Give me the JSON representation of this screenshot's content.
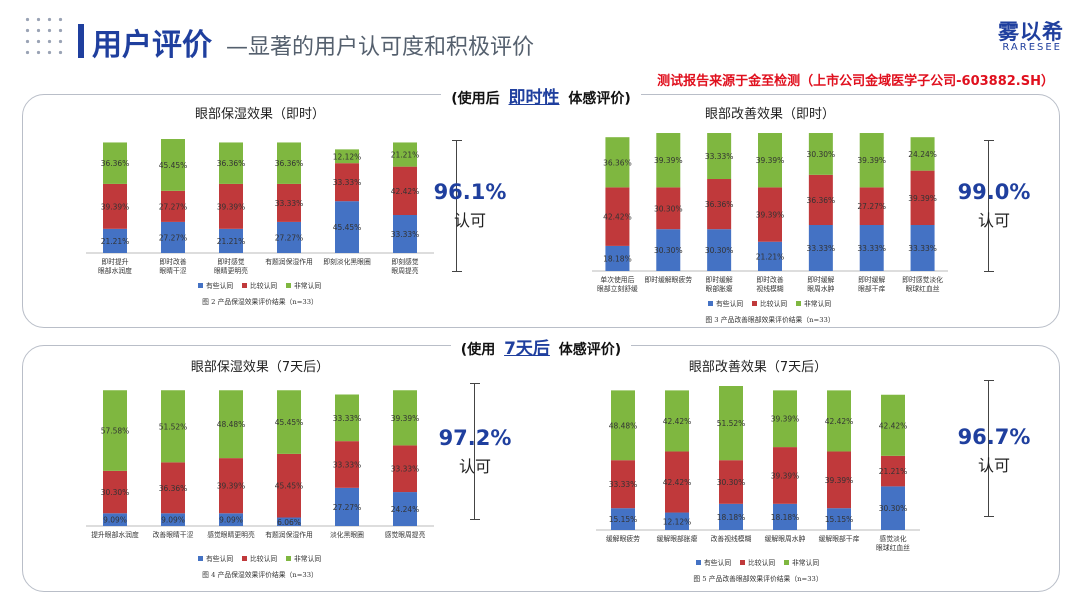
{
  "header": {
    "title_main": "用户评价",
    "title_sub": "—显著的用户认可度和积极评价",
    "brand_cn": "雾以希",
    "brand_en": "RARESEE",
    "report_note": "测试报告来源于金至检测（上市公司金域医学子公司-603882.SH）"
  },
  "sections": [
    {
      "prefix": "(使用后",
      "highlight": "即时性",
      "suffix": "体感评价)"
    },
    {
      "prefix": "(使用",
      "highlight": "7天后",
      "suffix": "体感评价)"
    }
  ],
  "legend": [
    "有些认同",
    "比较认同",
    "非常认同"
  ],
  "colors": {
    "some": "#4472c4",
    "fair": "#c0393b",
    "strong": "#7fb740",
    "accent": "#1f3f9e"
  },
  "approvals": [
    {
      "value": "96.1%",
      "label": "认可"
    },
    {
      "value": "99.0%",
      "label": "认可"
    },
    {
      "value": "97.2%",
      "label": "认可"
    },
    {
      "value": "96.7%",
      "label": "认可"
    }
  ],
  "chart_data": [
    {
      "type": "bar",
      "stacked": true,
      "title": "眼部保湿效果（即时）",
      "caption": "图 2 产品保湿效果评价结果（n=33）",
      "categories": [
        [
          "即时提升",
          "眼部水润度"
        ],
        [
          "即时改善",
          "眼睛干涩"
        ],
        [
          "即时感觉",
          "眼睛更明亮"
        ],
        [
          "有题润保湿作用"
        ],
        [
          "即刻淡化黑眼圈"
        ],
        [
          "即刻感觉",
          "眼周提亮"
        ]
      ],
      "series": [
        {
          "name": "有些认同",
          "values": [
            21.21,
            27.27,
            21.21,
            27.27,
            45.45,
            33.33
          ]
        },
        {
          "name": "比较认同",
          "values": [
            39.39,
            27.27,
            39.39,
            33.33,
            33.33,
            42.42
          ]
        },
        {
          "name": "非常认同",
          "values": [
            36.36,
            45.45,
            36.36,
            36.36,
            12.12,
            21.21
          ]
        }
      ],
      "labels": [
        [
          "21.21%",
          "27.27%",
          "21.21%",
          "27.27%",
          "45.45%",
          "33.33%"
        ],
        [
          "39.39%",
          "27.27%",
          "39.39%",
          "33.33%",
          "33.33%",
          "42.42%"
        ],
        [
          "36.36%",
          "45.45%",
          "36.36%",
          "36.36%",
          "12.12%",
          "21.21%"
        ]
      ]
    },
    {
      "type": "bar",
      "stacked": true,
      "title": "眼部改善效果（即时）",
      "caption": "图 3 产品改善眼部效果评价结果（n=33）",
      "categories": [
        [
          "单次使用后",
          "眼部立刻舒缓"
        ],
        [
          "即时缓解眼疲劳"
        ],
        [
          "即时缓解",
          "眼部胀瘪"
        ],
        [
          "即时改善",
          "视线模糊"
        ],
        [
          "即时缓解",
          "眼周水肿"
        ],
        [
          "即时缓解",
          "眼部干痒"
        ],
        [
          "即时感觉淡化",
          "眼球红血丝"
        ]
      ],
      "series": [
        {
          "name": "有些认同",
          "values": [
            18.18,
            30.3,
            30.3,
            21.21,
            33.33,
            33.33,
            33.33
          ]
        },
        {
          "name": "比较认同",
          "values": [
            42.42,
            30.3,
            36.36,
            39.39,
            36.36,
            27.27,
            39.39
          ]
        },
        {
          "name": "非常认同",
          "values": [
            36.36,
            39.39,
            33.33,
            39.39,
            30.3,
            39.39,
            24.24
          ]
        }
      ],
      "labels": [
        [
          "18.18%",
          "30.30%",
          "30.30%",
          "21.21%",
          "33.33%",
          "33.33%",
          "33.33%"
        ],
        [
          "42.42%",
          "30.30%",
          "36.36%",
          "39.39%",
          "36.36%",
          "27.27%",
          "39.39%"
        ],
        [
          "36.36%",
          "39.39%",
          "33.33%",
          "39.39%",
          "30.30%",
          "39.39%",
          "24.24%"
        ]
      ]
    },
    {
      "type": "bar",
      "stacked": true,
      "title": "眼部保湿效果（7天后）",
      "caption": "图 4 产品保湿效果评价结果（n=33）",
      "categories": [
        [
          "提升眼部水润度"
        ],
        [
          "改善眼睛干涩"
        ],
        [
          "感觉眼睛更明亮"
        ],
        [
          "有题润保湿作用"
        ],
        [
          "淡化黑眼圈"
        ],
        [
          "感觉眼周提亮"
        ]
      ],
      "series": [
        {
          "name": "有些认同",
          "values": [
            9.09,
            9.09,
            9.09,
            6.06,
            27.27,
            24.24
          ]
        },
        {
          "name": "比较认同",
          "values": [
            30.3,
            36.36,
            39.39,
            45.45,
            33.33,
            33.33
          ]
        },
        {
          "name": "非常认同",
          "values": [
            57.58,
            51.52,
            48.48,
            45.45,
            33.33,
            39.39
          ]
        }
      ],
      "labels": [
        [
          "9.09%",
          "9.09%",
          "9.09%",
          "6.06%",
          "27.27%",
          "24.24%"
        ],
        [
          "30.30%",
          "36.36%",
          "39.39%",
          "45.45%",
          "33.33%",
          "33.33%"
        ],
        [
          "57.58%",
          "51.52%",
          "48.48%",
          "45.45%",
          "33.33%",
          "39.39%"
        ]
      ]
    },
    {
      "type": "bar",
      "stacked": true,
      "title": "眼部改善效果（7天后）",
      "caption": "图 5 产品改善眼部效果评价结果（n=33）",
      "categories": [
        [
          "缓解眼疲劳"
        ],
        [
          "缓解眼部胀瘪"
        ],
        [
          "改善视线模糊"
        ],
        [
          "缓解眼周水肿"
        ],
        [
          "缓解眼部干痒"
        ],
        [
          "感觉淡化",
          "眼球红血丝"
        ]
      ],
      "series": [
        {
          "name": "有些认同",
          "values": [
            15.15,
            12.12,
            18.18,
            18.18,
            15.15,
            30.3
          ]
        },
        {
          "name": "比较认同",
          "values": [
            33.33,
            42.42,
            30.3,
            39.39,
            39.39,
            21.21
          ]
        },
        {
          "name": "非常认同",
          "values": [
            48.48,
            42.42,
            51.52,
            39.39,
            42.42,
            42.42
          ]
        }
      ],
      "labels": [
        [
          "15.15%",
          "12.12%",
          "18.18%",
          "18.18%",
          "15.15%",
          "30.30%"
        ],
        [
          "33.33%",
          "42.42%",
          "30.30%",
          "39.39%",
          "39.39%",
          "21.21%"
        ],
        [
          "48.48%",
          "42.42%",
          "51.52%",
          "39.39%",
          "42.42%",
          "42.42%"
        ]
      ]
    }
  ]
}
